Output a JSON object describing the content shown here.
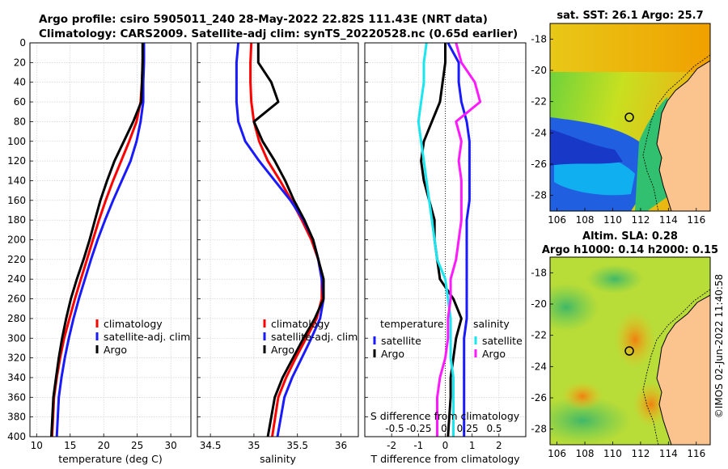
{
  "header": {
    "title_line1": "Argo profile: csiro 5905011_240 28-May-2022 22.82S 111.43E (NRT data)",
    "title_line2": "Climatology: CARS2009. Satellite-adj clim: synTS_20220528.nc (0.65d earlier)"
  },
  "colors": {
    "red": "#ff0000",
    "blue": "#1a1aff",
    "black": "#000000",
    "cyan": "#19e6ee",
    "magenta": "#ff19ff",
    "land": "#fbc48e"
  },
  "chart_data": [
    {
      "id": "temperature",
      "type": "line",
      "title": "",
      "xlabel": "temperature (deg C)",
      "ylabel": "",
      "xlim": [
        9,
        33
      ],
      "ylim": [
        0,
        400
      ],
      "y_reversed": true,
      "xticks": [
        "10",
        "15",
        "20",
        "25",
        "30"
      ],
      "xtick_values": [
        10,
        15,
        20,
        25,
        30
      ],
      "yticks": [
        "0",
        "20",
        "40",
        "60",
        "80",
        "100",
        "120",
        "140",
        "160",
        "180",
        "200",
        "220",
        "240",
        "260",
        "280",
        "300",
        "320",
        "340",
        "360",
        "380",
        "400"
      ],
      "legend": [
        "climatology",
        "satellite-adj. clim",
        "Argo"
      ],
      "series": [
        {
          "name": "climatology",
          "color": "red",
          "x": [
            25.9,
            25.8,
            25.7,
            25.5,
            24.9,
            23.8,
            22.6,
            21.4,
            20.3,
            19.3,
            18.4,
            17.5,
            16.6,
            15.7,
            14.9,
            14.1,
            13.5,
            13.0,
            12.6,
            12.3
          ],
          "y": [
            0,
            20,
            40,
            60,
            80,
            100,
            120,
            140,
            160,
            180,
            200,
            220,
            240,
            260,
            280,
            300,
            320,
            340,
            360,
            400
          ]
        },
        {
          "name": "satellite-adj. clim",
          "color": "blue",
          "x": [
            26.0,
            26.0,
            25.9,
            25.9,
            25.5,
            24.9,
            24.0,
            22.7,
            21.4,
            20.2,
            19.1,
            18.1,
            17.2,
            16.3,
            15.5,
            14.8,
            14.2,
            13.7,
            13.3,
            13.0
          ],
          "y": [
            0,
            20,
            40,
            60,
            80,
            100,
            120,
            140,
            160,
            180,
            200,
            220,
            240,
            260,
            280,
            300,
            320,
            340,
            360,
            400
          ]
        },
        {
          "name": "Argo",
          "color": "black",
          "x": [
            25.8,
            25.8,
            25.7,
            25.6,
            24.4,
            23.0,
            21.6,
            20.5,
            19.5,
            18.7,
            17.9,
            17.0,
            16.0,
            15.1,
            14.4,
            13.8,
            13.3,
            12.9,
            12.5,
            12.2
          ],
          "y": [
            0,
            20,
            40,
            60,
            80,
            100,
            120,
            140,
            160,
            180,
            200,
            220,
            240,
            260,
            280,
            300,
            320,
            340,
            360,
            400
          ]
        }
      ]
    },
    {
      "id": "salinity",
      "type": "line",
      "title": "",
      "xlabel": "salinity",
      "ylabel": "",
      "xlim": [
        34.35,
        36.2
      ],
      "ylim": [
        0,
        400
      ],
      "y_reversed": true,
      "xticks": [
        "34.5",
        "35",
        "35.5",
        "36"
      ],
      "xtick_values": [
        34.5,
        35,
        35.5,
        36
      ],
      "legend": [
        "climatology",
        "satellite-adj. clim",
        "Argo"
      ],
      "series": [
        {
          "name": "climatology",
          "color": "red",
          "x": [
            34.97,
            34.96,
            34.96,
            34.97,
            35.0,
            35.06,
            35.16,
            35.3,
            35.43,
            35.55,
            35.66,
            35.74,
            35.78,
            35.78,
            35.72,
            35.6,
            35.48,
            35.37,
            35.28,
            35.21
          ],
          "y": [
            0,
            20,
            40,
            60,
            80,
            100,
            120,
            140,
            160,
            180,
            200,
            220,
            240,
            260,
            280,
            300,
            320,
            340,
            360,
            400
          ]
        },
        {
          "name": "satellite-adj. clim",
          "color": "blue",
          "x": [
            34.82,
            34.8,
            34.8,
            34.8,
            34.82,
            34.9,
            35.06,
            35.24,
            35.42,
            35.57,
            35.68,
            35.74,
            35.78,
            35.8,
            35.76,
            35.66,
            35.55,
            35.44,
            35.35,
            35.27
          ],
          "y": [
            0,
            20,
            40,
            60,
            80,
            100,
            120,
            140,
            160,
            180,
            200,
            220,
            240,
            260,
            280,
            300,
            320,
            340,
            360,
            400
          ]
        },
        {
          "name": "Argo",
          "color": "black",
          "x": [
            35.05,
            35.05,
            35.2,
            35.28,
            35.0,
            35.1,
            35.24,
            35.36,
            35.46,
            35.58,
            35.68,
            35.74,
            35.8,
            35.8,
            35.7,
            35.57,
            35.45,
            35.33,
            35.24,
            35.16
          ],
          "y": [
            0,
            20,
            40,
            60,
            80,
            100,
            120,
            140,
            160,
            180,
            200,
            220,
            240,
            260,
            280,
            300,
            320,
            340,
            360,
            400
          ]
        }
      ]
    },
    {
      "id": "difference",
      "type": "line",
      "title": "",
      "xlabel": "T difference from climatology",
      "ylabel": "",
      "xlim": [
        -3,
        3
      ],
      "ylim": [
        0,
        400
      ],
      "y_reversed": true,
      "xticks": [
        "-2",
        "-1",
        "0",
        "1",
        "2"
      ],
      "xtick_values": [
        -2,
        -1,
        0,
        1,
        2
      ],
      "top_axis_label": "S difference from climatology",
      "top_xticks": [
        "-0.5",
        "-0.25",
        "0",
        "0.25",
        "0.5"
      ],
      "legend_temperature_title": "temperature",
      "legend_salinity_title": "salinity",
      "legend": [
        "satellite",
        "Argo",
        "satellite",
        "Argo"
      ],
      "series": [
        {
          "name": "T satellite",
          "color": "blue",
          "x": [
            0.1,
            0.5,
            0.5,
            0.6,
            0.8,
            0.9,
            0.9,
            0.9,
            0.9,
            0.8,
            0.8,
            0.8,
            0.8,
            0.8,
            0.8,
            0.7,
            0.7,
            0.7,
            0.7,
            0.7
          ],
          "y": [
            0,
            20,
            40,
            60,
            80,
            100,
            120,
            140,
            160,
            180,
            200,
            220,
            240,
            260,
            280,
            300,
            320,
            340,
            360,
            400
          ]
        },
        {
          "name": "T Argo",
          "color": "black",
          "x": [
            0.0,
            0.0,
            -0.1,
            -0.2,
            -0.5,
            -0.8,
            -0.9,
            -0.8,
            -0.6,
            -0.4,
            -0.4,
            -0.3,
            -0.2,
            0.3,
            0.6,
            0.4,
            0.3,
            0.2,
            0.2,
            0.1
          ],
          "y": [
            0,
            20,
            40,
            60,
            80,
            100,
            120,
            140,
            160,
            180,
            200,
            220,
            240,
            260,
            280,
            300,
            320,
            340,
            360,
            400
          ]
        },
        {
          "name": "S satellite",
          "color": "cyan",
          "x": [
            -0.7,
            -0.8,
            -0.8,
            -0.9,
            -1.0,
            -0.9,
            -0.8,
            -0.7,
            -0.6,
            -0.5,
            -0.4,
            -0.3,
            0.0,
            0.1,
            0.2,
            0.2,
            0.2,
            0.3,
            0.3,
            0.3
          ],
          "y": [
            0,
            20,
            40,
            60,
            80,
            100,
            120,
            140,
            160,
            180,
            200,
            220,
            240,
            260,
            280,
            300,
            320,
            340,
            360,
            400
          ]
        },
        {
          "name": "S Argo",
          "color": "magenta",
          "x": [
            0.4,
            0.6,
            1.1,
            1.3,
            0.4,
            0.6,
            0.5,
            0.6,
            0.6,
            0.6,
            0.5,
            0.4,
            0.2,
            0.2,
            0.1,
            0.1,
            0.0,
            -0.2,
            -0.3,
            -0.3
          ],
          "y": [
            0,
            20,
            40,
            60,
            80,
            100,
            120,
            140,
            160,
            180,
            200,
            220,
            240,
            260,
            280,
            300,
            320,
            340,
            360,
            400
          ]
        }
      ]
    },
    {
      "id": "sst_map",
      "type": "heatmap",
      "title": "sat. SST: 26.1 Argo: 25.7",
      "xlabel": "",
      "ylabel": "",
      "xlim": [
        105.5,
        117
      ],
      "ylim": [
        -29,
        -17
      ],
      "xticks": [
        "106",
        "108",
        "110",
        "112",
        "114",
        "116"
      ],
      "xtick_values": [
        106,
        108,
        110,
        112,
        114,
        116
      ],
      "yticks": [
        "-18",
        "-20",
        "-22",
        "-24",
        "-26",
        "-28"
      ],
      "ytick_values": [
        -18,
        -20,
        -22,
        -24,
        -26,
        -28
      ],
      "marker": {
        "lon": 111.43,
        "lat": -22.82
      }
    },
    {
      "id": "sla_map",
      "type": "heatmap",
      "title_line1": "Altim. SLA: 0.28",
      "title_line2": "Argo h1000: 0.14 h2000: 0.15",
      "xlabel": "",
      "ylabel": "",
      "xlim": [
        105.5,
        117
      ],
      "ylim": [
        -29,
        -17
      ],
      "xticks": [
        "106",
        "108",
        "110",
        "112",
        "114",
        "116"
      ],
      "xtick_values": [
        106,
        108,
        110,
        112,
        114,
        116
      ],
      "yticks": [
        "-18",
        "-20",
        "-22",
        "-24",
        "-26",
        "-28"
      ],
      "ytick_values": [
        -18,
        -20,
        -22,
        -24,
        -26,
        -28
      ],
      "marker": {
        "lon": 111.43,
        "lat": -22.82
      }
    }
  ],
  "credit": "©IMOS 02-Jun-2022 11:40:58"
}
